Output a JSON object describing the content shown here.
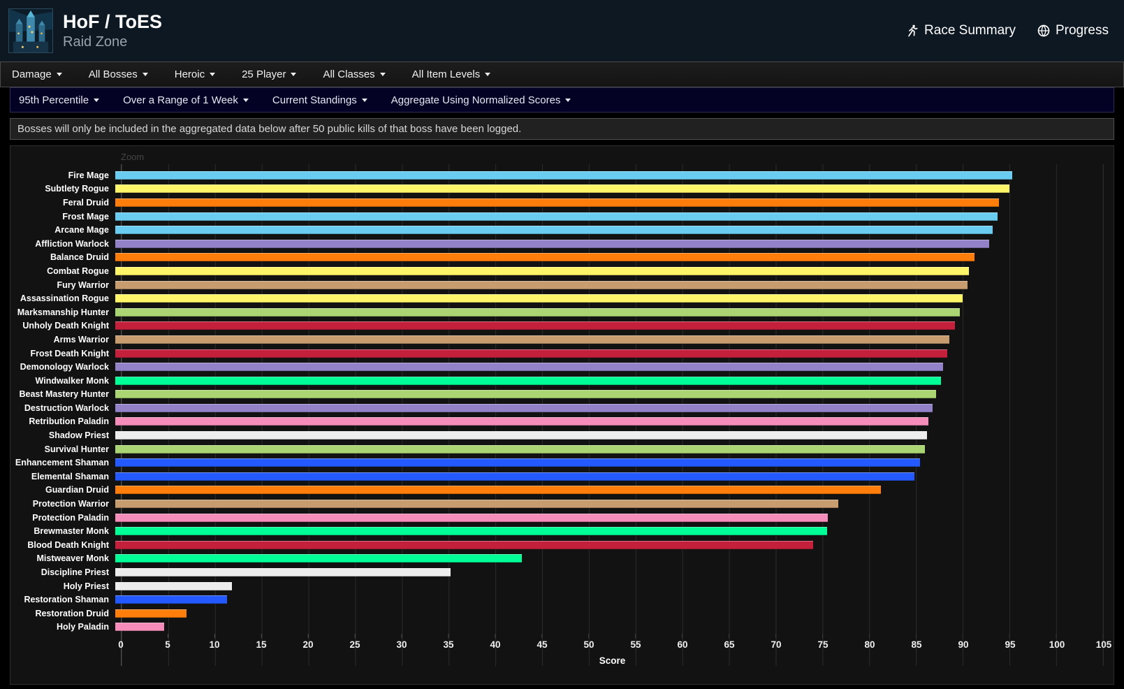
{
  "header": {
    "title": "HoF / ToES",
    "subtitle": "Raid Zone",
    "links": [
      {
        "label": "Race Summary",
        "icon": "runner-icon"
      },
      {
        "label": "Progress",
        "icon": "globe-icon"
      }
    ]
  },
  "filters_primary": [
    {
      "label": "Damage"
    },
    {
      "label": "All Bosses"
    },
    {
      "label": "Heroic"
    },
    {
      "label": "25 Player"
    },
    {
      "label": "All Classes"
    },
    {
      "label": "All Item Levels"
    }
  ],
  "filters_secondary": [
    {
      "label": "95th Percentile"
    },
    {
      "label": "Over a Range of 1 Week"
    },
    {
      "label": "Current Standings"
    },
    {
      "label": "Aggregate Using Normalized Scores"
    }
  ],
  "notice": "Bosses will only be included in the aggregated data below after 50 public kills of that boss have been logged.",
  "chart": {
    "zoom_label": "Zoom"
  },
  "chart_data": {
    "type": "bar",
    "orientation": "horizontal",
    "title": "",
    "xlabel": "Score",
    "ylabel": "",
    "xlim": [
      0,
      105
    ],
    "tick_step": 5,
    "grid": true,
    "legend": false,
    "categories": [
      "Fire Mage",
      "Subtlety Rogue",
      "Feral Druid",
      "Frost Mage",
      "Arcane Mage",
      "Affliction Warlock",
      "Balance Druid",
      "Combat Rogue",
      "Fury Warrior",
      "Assassination Rogue",
      "Marksmanship Hunter",
      "Unholy Death Knight",
      "Arms Warrior",
      "Frost Death Knight",
      "Demonology Warlock",
      "Windwalker Monk",
      "Beast Mastery Hunter",
      "Destruction Warlock",
      "Retribution Paladin",
      "Shadow Priest",
      "Survival Hunter",
      "Enhancement Shaman",
      "Elemental Shaman",
      "Guardian Druid",
      "Protection Warrior",
      "Protection Paladin",
      "Brewmaster Monk",
      "Blood Death Knight",
      "Mistweaver Monk",
      "Discipline Priest",
      "Holy Priest",
      "Restoration Shaman",
      "Restoration Druid",
      "Holy Paladin"
    ],
    "values": [
      95.3,
      95.0,
      93.9,
      93.7,
      93.2,
      92.8,
      91.3,
      90.7,
      90.5,
      90.0,
      89.7,
      89.2,
      88.6,
      88.4,
      87.9,
      87.7,
      87.2,
      86.8,
      86.4,
      86.2,
      86.0,
      85.5,
      84.9,
      81.3,
      76.8,
      75.7,
      75.6,
      74.1,
      43.2,
      35.6,
      12.4,
      11.9,
      7.6,
      5.2
    ],
    "colors": [
      "#69CCF0",
      "#FFF569",
      "#FF7D0A",
      "#69CCF0",
      "#69CCF0",
      "#9482C9",
      "#FF7D0A",
      "#FFF569",
      "#C79C6E",
      "#FFF569",
      "#ABD473",
      "#C41F3B",
      "#C79C6E",
      "#C41F3B",
      "#9482C9",
      "#00FF96",
      "#ABD473",
      "#9482C9",
      "#F58CBA",
      "#EDEDED",
      "#ABD473",
      "#2459FF",
      "#2459FF",
      "#FF7D0A",
      "#C79C6E",
      "#F58CBA",
      "#00FF96",
      "#C41F3B",
      "#00FF96",
      "#EDEDED",
      "#EDEDED",
      "#2459FF",
      "#FF7D0A",
      "#F58CBA"
    ],
    "class_colors": {
      "Mage": "#69CCF0",
      "Rogue": "#FFF569",
      "Druid": "#FF7D0A",
      "Warlock": "#9482C9",
      "Warrior": "#C79C6E",
      "Hunter": "#ABD473",
      "Death Knight": "#C41F3B",
      "Monk": "#00FF96",
      "Paladin": "#F58CBA",
      "Priest": "#EDEDED",
      "Shaman": "#2459FF"
    }
  }
}
